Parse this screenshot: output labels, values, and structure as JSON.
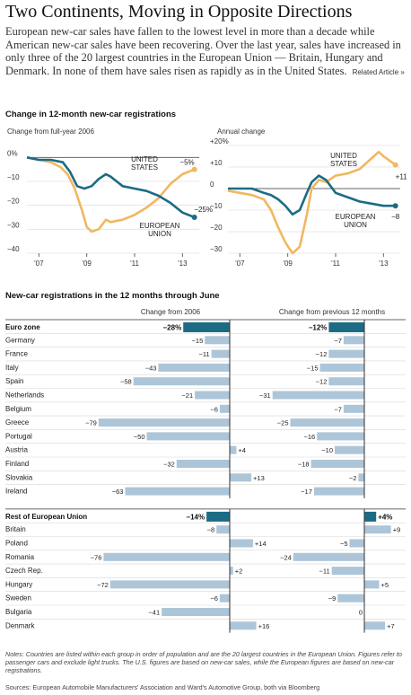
{
  "page": {
    "title": "Two Continents, Moving in Opposite Directions",
    "intro": "European new-car sales have fallen to the lowest level in more than a decade while American new-car sales have been recovering. Over the last year, sales have increased in only three of the 20 largest countries in the European Union — Britain, Hungary and Denmark. In none of them have sales risen as rapidly as in the United States.",
    "related_link": "Related Article »",
    "section1_heading": "Change in 12-month new-car registrations",
    "section2_heading": "New-car registrations in the 12 months through June",
    "notes": "Notes: Countries are listed within each group in order of population and are the 20 largest countries in the European Union. Figures refer to passenger cars and exclude light trucks. The U.S. figures are based on new-car sales, while the European figures are based on new-car registrations.",
    "source": "Sources: European Automobile Manufacturers' Association and Ward's Automotive Group, both via Bloomberg"
  },
  "colors": {
    "us": "#f2b760",
    "eu": "#1c6b85",
    "bar": "#adc5d8",
    "highlight": "#1c6b85",
    "axis": "#333333"
  },
  "chart_data": [
    {
      "type": "line",
      "subtitle": "Change from full-year 2006",
      "ylim": [
        -40,
        5
      ],
      "yticks": [
        {
          "v": 0,
          "label": "0%"
        },
        {
          "v": -10,
          "label": "−10"
        },
        {
          "v": -20,
          "label": "−20"
        },
        {
          "v": -30,
          "label": "−30"
        },
        {
          "v": -40,
          "label": "−40"
        }
      ],
      "xlim": [
        2006.5,
        2013.7
      ],
      "xticks": [
        {
          "v": 2007,
          "label": "'07"
        },
        {
          "v": 2009,
          "label": "'09"
        },
        {
          "v": 2011,
          "label": "'11"
        },
        {
          "v": 2013,
          "label": "'13"
        }
      ],
      "series": [
        {
          "name": "UNITED STATES",
          "color": "#f2b760",
          "end_label": "−5%",
          "x": [
            2006.5,
            2007.0,
            2007.5,
            2007.9,
            2008.2,
            2008.5,
            2008.8,
            2009.0,
            2009.2,
            2009.5,
            2009.8,
            2010.0,
            2010.5,
            2011.0,
            2011.5,
            2012.0,
            2012.5,
            2013.0,
            2013.5
          ],
          "y": [
            0,
            -1,
            -2,
            -4,
            -7,
            -13,
            -22,
            -29,
            -31,
            -30,
            -26,
            -27,
            -26,
            -24,
            -21,
            -17,
            -11,
            -7,
            -5
          ]
        },
        {
          "name": "EUROPEAN UNION",
          "color": "#1c6b85",
          "end_label": "−25%",
          "x": [
            2006.5,
            2007.0,
            2007.5,
            2008.0,
            2008.3,
            2008.6,
            2008.9,
            2009.2,
            2009.5,
            2009.8,
            2010.0,
            2010.5,
            2011.0,
            2011.5,
            2012.0,
            2012.5,
            2013.0,
            2013.5
          ],
          "y": [
            0,
            -1,
            -1,
            -2,
            -6,
            -12,
            -13,
            -12,
            -9,
            -7,
            -8,
            -12,
            -13,
            -14,
            -16,
            -19,
            -23,
            -25
          ]
        }
      ]
    },
    {
      "type": "line",
      "subtitle": "Annual change",
      "ylim": [
        -30,
        20
      ],
      "yticks": [
        {
          "v": 20,
          "label": "+20%"
        },
        {
          "v": 10,
          "label": "+10"
        },
        {
          "v": 0,
          "label": "0"
        },
        {
          "v": -10,
          "label": "−10"
        },
        {
          "v": -20,
          "label": "−20"
        },
        {
          "v": -30,
          "label": "−30"
        }
      ],
      "xlim": [
        2006.5,
        2013.7
      ],
      "xticks": [
        {
          "v": 2007,
          "label": "'07"
        },
        {
          "v": 2009,
          "label": "'09"
        },
        {
          "v": 2011,
          "label": "'11"
        },
        {
          "v": 2013,
          "label": "'13"
        }
      ],
      "series": [
        {
          "name": "UNITED STATES",
          "color": "#f2b760",
          "end_label": "+11",
          "x": [
            2006.5,
            2007.0,
            2007.5,
            2008.0,
            2008.3,
            2008.6,
            2008.9,
            2009.2,
            2009.5,
            2009.8,
            2010.0,
            2010.3,
            2010.6,
            2011.0,
            2011.5,
            2012.0,
            2012.5,
            2012.8,
            2013.0,
            2013.5
          ],
          "y": [
            -1,
            -2,
            -3,
            -5,
            -10,
            -18,
            -25,
            -30,
            -27,
            -12,
            0,
            4,
            3,
            6,
            7,
            9,
            14,
            17,
            15,
            11
          ]
        },
        {
          "name": "EUROPEAN UNION",
          "color": "#1c6b85",
          "end_label": "−8",
          "x": [
            2006.5,
            2007.0,
            2007.5,
            2008.0,
            2008.3,
            2008.6,
            2008.9,
            2009.2,
            2009.5,
            2009.8,
            2010.0,
            2010.3,
            2010.6,
            2011.0,
            2011.5,
            2012.0,
            2012.5,
            2013.0,
            2013.5
          ],
          "y": [
            0,
            0,
            0,
            -2,
            -3,
            -5,
            -8,
            -12,
            -10,
            -2,
            3,
            6,
            4,
            -2,
            -4,
            -6,
            -7,
            -8,
            -8
          ]
        }
      ]
    },
    {
      "type": "bar",
      "orientation": "horizontal",
      "columns": [
        "Change from 2006",
        "Change from previous 12 months"
      ],
      "groups": [
        {
          "name": "Euro zone",
          "total": [
            -28,
            -12
          ],
          "total_labels": [
            "−28%",
            "−12%"
          ],
          "categories": [
            "Germany",
            "France",
            "Italy",
            "Spain",
            "Netherlands",
            "Belgium",
            "Greece",
            "Portugal",
            "Austria",
            "Finland",
            "Slovakia",
            "Ireland"
          ],
          "from_2006": [
            -15,
            -11,
            -43,
            -58,
            -21,
            -6,
            -79,
            -50,
            4,
            -32,
            13,
            -63
          ],
          "from_2006_labels": [
            "−15",
            "−11",
            "−43",
            "−58",
            "−21",
            "−6",
            "−79",
            "−50",
            "+4",
            "−32",
            "+13",
            "−63"
          ],
          "from_prev": [
            -7,
            -12,
            -15,
            -12,
            -31,
            -7,
            -25,
            -16,
            -10,
            -18,
            -2,
            -17
          ],
          "from_prev_labels": [
            "−7",
            "−12",
            "−15",
            "−12",
            "−31",
            "−7",
            "−25",
            "−16",
            "−10",
            "−18",
            "−2",
            "−17"
          ]
        },
        {
          "name": "Rest of European Union",
          "total": [
            -14,
            4
          ],
          "total_labels": [
            "−14%",
            "+4%"
          ],
          "categories": [
            "Britain",
            "Poland",
            "Romania",
            "Czech Rep.",
            "Hungary",
            "Sweden",
            "Bulgaria",
            "Denmark"
          ],
          "from_2006": [
            -8,
            14,
            -76,
            2,
            -72,
            -6,
            -41,
            16
          ],
          "from_2006_labels": [
            "−8",
            "+14",
            "−76",
            "+2",
            "−72",
            "−6",
            "−41",
            "+16"
          ],
          "from_prev": [
            9,
            -5,
            -24,
            -11,
            5,
            -9,
            0,
            7
          ],
          "from_prev_labels": [
            "+9",
            "−5",
            "−24",
            "−11",
            "+5",
            "−9",
            "0",
            "+7"
          ]
        }
      ]
    }
  ]
}
